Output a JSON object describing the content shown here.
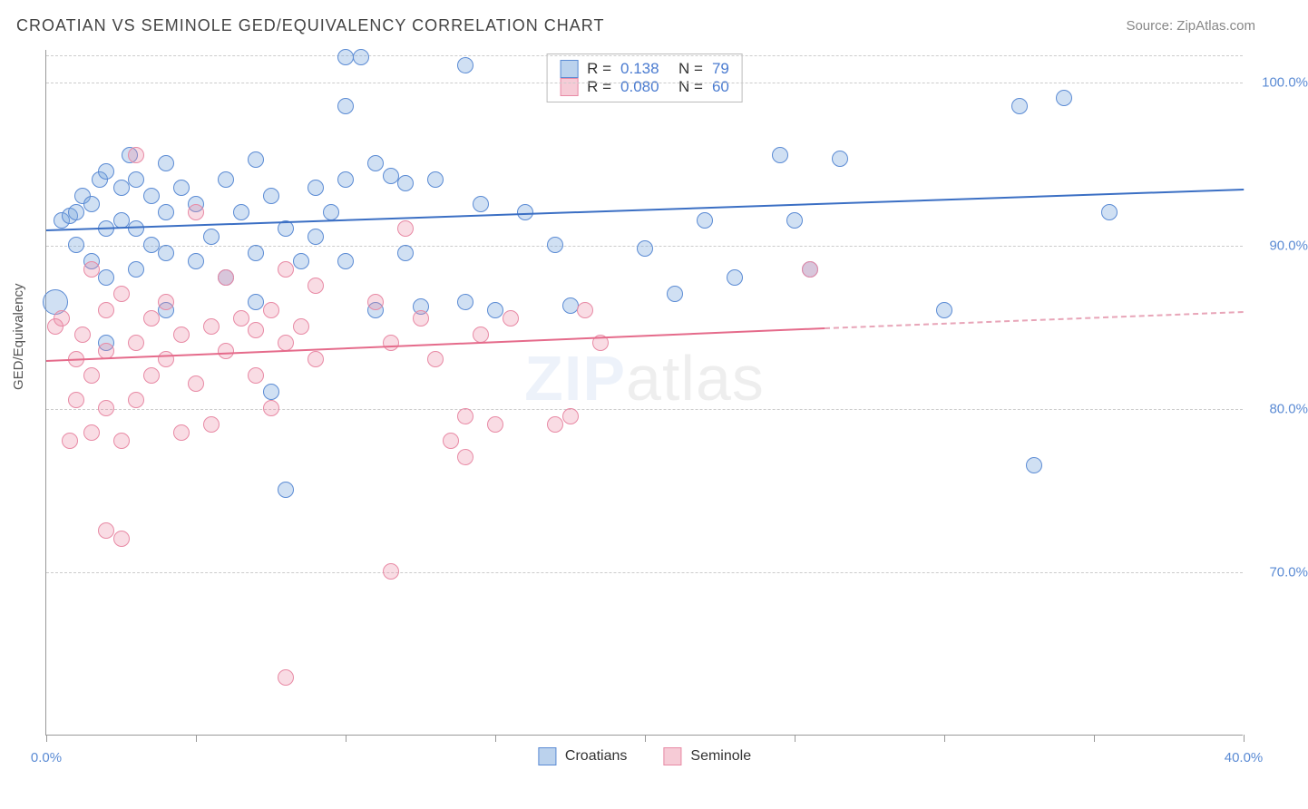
{
  "title": "CROATIAN VS SEMINOLE GED/EQUIVALENCY CORRELATION CHART",
  "source": "Source: ZipAtlas.com",
  "watermark_a": "ZIP",
  "watermark_b": "atlas",
  "chart": {
    "type": "scatter",
    "ylabel": "GED/Equivalency",
    "xlim": [
      0,
      40
    ],
    "ylim": [
      60,
      102
    ],
    "xticks": [
      0,
      5,
      10,
      15,
      20,
      25,
      30,
      35,
      40
    ],
    "xtick_labels": {
      "0": "0.0%",
      "40": "40.0%"
    },
    "yticks": [
      70,
      80,
      90,
      100
    ],
    "ytick_labels": [
      "70.0%",
      "80.0%",
      "90.0%",
      "100.0%"
    ],
    "background_color": "#ffffff",
    "grid_color": "#cccccc",
    "point_radius": 9,
    "series": [
      {
        "name": "Croatians",
        "color_fill": "rgba(120,165,220,0.35)",
        "color_stroke": "#5b8bd4",
        "R": "0.138",
        "N": "79",
        "trend": {
          "x1": 0,
          "y1": 91.0,
          "x2": 40,
          "y2": 93.5,
          "color": "#3b6fc4"
        },
        "points": [
          [
            0.3,
            86.5,
            14
          ],
          [
            0.5,
            91.5,
            9
          ],
          [
            0.8,
            91.8,
            9
          ],
          [
            1.0,
            92.0,
            9
          ],
          [
            1.0,
            90.0,
            9
          ],
          [
            1.2,
            93.0,
            9
          ],
          [
            1.5,
            92.5,
            9
          ],
          [
            1.5,
            89.0,
            9
          ],
          [
            1.8,
            94.0,
            9
          ],
          [
            2.0,
            94.5,
            9
          ],
          [
            2.0,
            91.0,
            9
          ],
          [
            2.0,
            88.0,
            9
          ],
          [
            2.0,
            84.0,
            9
          ],
          [
            2.5,
            93.5,
            9
          ],
          [
            2.5,
            91.5,
            9
          ],
          [
            2.8,
            95.5,
            9
          ],
          [
            3.0,
            94.0,
            9
          ],
          [
            3.0,
            91.0,
            9
          ],
          [
            3.0,
            88.5,
            9
          ],
          [
            3.5,
            93.0,
            9
          ],
          [
            3.5,
            90.0,
            9
          ],
          [
            4.0,
            95.0,
            9
          ],
          [
            4.0,
            92.0,
            9
          ],
          [
            4.0,
            89.5,
            9
          ],
          [
            4.0,
            86.0,
            9
          ],
          [
            4.5,
            93.5,
            9
          ],
          [
            5.0,
            92.5,
            9
          ],
          [
            5.0,
            89.0,
            9
          ],
          [
            5.5,
            90.5,
            9
          ],
          [
            6.0,
            94.0,
            9
          ],
          [
            6.0,
            88.0,
            9
          ],
          [
            6.5,
            92.0,
            9
          ],
          [
            7.0,
            95.2,
            9
          ],
          [
            7.0,
            89.5,
            9
          ],
          [
            7.0,
            86.5,
            9
          ],
          [
            7.5,
            93.0,
            9
          ],
          [
            7.5,
            81.0,
            9
          ],
          [
            8.0,
            91.0,
            9
          ],
          [
            8.0,
            75.0,
            9
          ],
          [
            8.5,
            89.0,
            9
          ],
          [
            9.0,
            93.5,
            9
          ],
          [
            9.0,
            90.5,
            9
          ],
          [
            9.5,
            92.0,
            9
          ],
          [
            10.0,
            101.5,
            9
          ],
          [
            10.0,
            98.5,
            9
          ],
          [
            10.0,
            94.0,
            9
          ],
          [
            10.0,
            89.0,
            9
          ],
          [
            10.5,
            101.5,
            9
          ],
          [
            11.0,
            95.0,
            9
          ],
          [
            11.0,
            86.0,
            9
          ],
          [
            11.5,
            94.2,
            9
          ],
          [
            12.0,
            93.8,
            9
          ],
          [
            12.0,
            89.5,
            9
          ],
          [
            12.5,
            86.2,
            9
          ],
          [
            13.0,
            94.0,
            9
          ],
          [
            14.0,
            101.0,
            9
          ],
          [
            14.0,
            86.5,
            9
          ],
          [
            14.5,
            92.5,
            9
          ],
          [
            15.0,
            86.0,
            9
          ],
          [
            16.0,
            92.0,
            9
          ],
          [
            17.0,
            90.0,
            9
          ],
          [
            17.5,
            86.3,
            9
          ],
          [
            20.0,
            89.8,
            9
          ],
          [
            21.0,
            87.0,
            9
          ],
          [
            22.0,
            91.5,
            9
          ],
          [
            23.0,
            88.0,
            9
          ],
          [
            24.5,
            95.5,
            9
          ],
          [
            25.0,
            91.5,
            9
          ],
          [
            25.5,
            88.5,
            9
          ],
          [
            26.5,
            95.3,
            9
          ],
          [
            30.0,
            86.0,
            9
          ],
          [
            32.5,
            98.5,
            9
          ],
          [
            33.0,
            76.5,
            9
          ],
          [
            34.0,
            99.0,
            9
          ],
          [
            35.5,
            92.0,
            9
          ]
        ]
      },
      {
        "name": "Seminole",
        "color_fill": "rgba(235,140,165,0.30)",
        "color_stroke": "#e88aa5",
        "R": "0.080",
        "N": "60",
        "trend": {
          "x1": 0,
          "y1": 83.0,
          "x2": 26,
          "y2": 85.0,
          "color": "#e56b8b",
          "dash_to": 40,
          "dash_y": 86.0
        },
        "points": [
          [
            0.3,
            85.0,
            9
          ],
          [
            0.5,
            85.5,
            9
          ],
          [
            0.8,
            78.0,
            9
          ],
          [
            1.0,
            83.0,
            9
          ],
          [
            1.0,
            80.5,
            9
          ],
          [
            1.2,
            84.5,
            9
          ],
          [
            1.5,
            88.5,
            9
          ],
          [
            1.5,
            82.0,
            9
          ],
          [
            1.5,
            78.5,
            9
          ],
          [
            2.0,
            86.0,
            9
          ],
          [
            2.0,
            83.5,
            9
          ],
          [
            2.0,
            80.0,
            9
          ],
          [
            2.0,
            72.5,
            9
          ],
          [
            2.5,
            87.0,
            9
          ],
          [
            2.5,
            78.0,
            9
          ],
          [
            2.5,
            72.0,
            9
          ],
          [
            3.0,
            84.0,
            9
          ],
          [
            3.0,
            80.5,
            9
          ],
          [
            3.0,
            95.5,
            9
          ],
          [
            3.5,
            85.5,
            9
          ],
          [
            3.5,
            82.0,
            9
          ],
          [
            4.0,
            86.5,
            9
          ],
          [
            4.0,
            83.0,
            9
          ],
          [
            4.5,
            84.5,
            9
          ],
          [
            4.5,
            78.5,
            9
          ],
          [
            5.0,
            92.0,
            9
          ],
          [
            5.0,
            81.5,
            9
          ],
          [
            5.5,
            85.0,
            9
          ],
          [
            5.5,
            79.0,
            9
          ],
          [
            6.0,
            83.5,
            9
          ],
          [
            6.0,
            88.0,
            9
          ],
          [
            6.5,
            85.5,
            9
          ],
          [
            7.0,
            82.0,
            9
          ],
          [
            7.0,
            84.8,
            9
          ],
          [
            7.5,
            86.0,
            9
          ],
          [
            7.5,
            80.0,
            9
          ],
          [
            8.0,
            88.5,
            9
          ],
          [
            8.0,
            84.0,
            9
          ],
          [
            8.0,
            63.5,
            9
          ],
          [
            8.5,
            85.0,
            9
          ],
          [
            9.0,
            83.0,
            9
          ],
          [
            9.0,
            87.5,
            9
          ],
          [
            11.0,
            86.5,
            9
          ],
          [
            11.5,
            84.0,
            9
          ],
          [
            11.5,
            70.0,
            9
          ],
          [
            12.0,
            91.0,
            9
          ],
          [
            12.5,
            85.5,
            9
          ],
          [
            13.0,
            83.0,
            9
          ],
          [
            13.5,
            78.0,
            9
          ],
          [
            14.0,
            77.0,
            9
          ],
          [
            14.0,
            79.5,
            9
          ],
          [
            14.5,
            84.5,
            9
          ],
          [
            15.0,
            79.0,
            9
          ],
          [
            15.5,
            85.5,
            9
          ],
          [
            17.0,
            79.0,
            9
          ],
          [
            17.5,
            79.5,
            9
          ],
          [
            18.0,
            86.0,
            9
          ],
          [
            18.5,
            84.0,
            9
          ],
          [
            25.5,
            88.5,
            9
          ]
        ]
      }
    ]
  },
  "legend_top": {
    "rows": [
      {
        "sw": "a",
        "r_label": "R =",
        "r": "0.138",
        "n_label": "N =",
        "n": "79"
      },
      {
        "sw": "b",
        "r_label": "R =",
        "r": "0.080",
        "n_label": "N =",
        "n": "60"
      }
    ]
  },
  "legend_bottom": [
    {
      "sw": "a",
      "label": "Croatians"
    },
    {
      "sw": "b",
      "label": "Seminole"
    }
  ]
}
